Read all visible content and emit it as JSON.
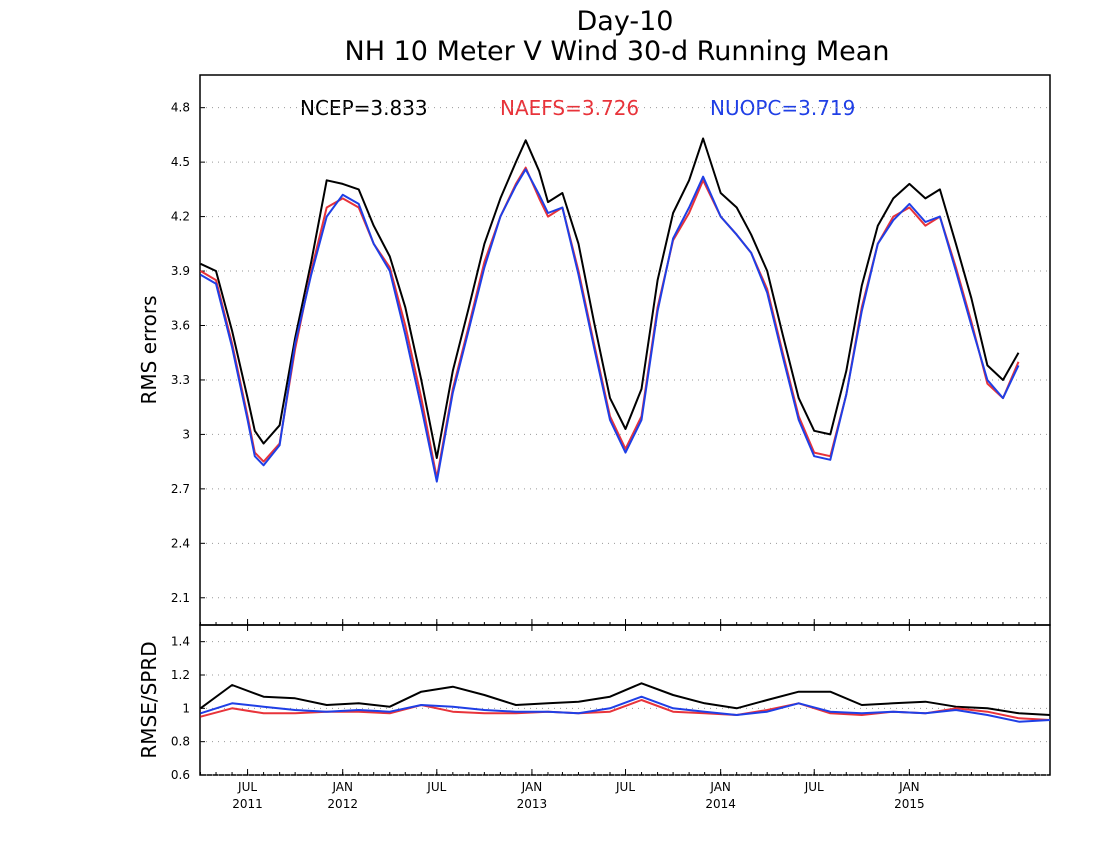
{
  "title": {
    "line1": "Day-10",
    "line2": "NH 10 Meter V Wind 30-d Running Mean"
  },
  "colors": {
    "NCEP": "#000000",
    "NAEFS": "#e8333a",
    "NUOPC": "#1f3fe6"
  },
  "chart_data": [
    {
      "type": "line",
      "ylabel": "RMS errors",
      "ylim": [
        1.95,
        4.98
      ],
      "yticks": [
        "2.1",
        "2.4",
        "2.7",
        "3",
        "3.3",
        "3.6",
        "3.9",
        "4.2",
        "4.5",
        "4.8"
      ],
      "x_range": [
        "2011-03-31",
        "2015-09-30"
      ],
      "grid": true,
      "legend_position": "top",
      "legend": [
        {
          "text": "NCEP=3.833",
          "series": "NCEP"
        },
        {
          "text": "NAEFS=3.726",
          "series": "NAEFS"
        },
        {
          "text": "NUOPC=3.719",
          "series": "NUOPC"
        }
      ],
      "x": [
        "2011-04-01",
        "2011-05-01",
        "2011-06-01",
        "2011-07-01",
        "2011-07-15",
        "2011-08-01",
        "2011-09-01",
        "2011-10-01",
        "2011-11-01",
        "2011-12-01",
        "2012-01-01",
        "2012-02-01",
        "2012-03-01",
        "2012-04-01",
        "2012-05-01",
        "2012-06-01",
        "2012-07-01",
        "2012-08-01",
        "2012-09-01",
        "2012-10-01",
        "2012-11-01",
        "2012-12-01",
        "2012-12-20",
        "2013-01-15",
        "2013-02-01",
        "2013-03-01",
        "2013-04-01",
        "2013-05-01",
        "2013-06-01",
        "2013-07-01",
        "2013-08-01",
        "2013-09-01",
        "2013-10-01",
        "2013-11-01",
        "2013-11-28",
        "2014-01-01",
        "2014-02-01",
        "2014-03-01",
        "2014-04-01",
        "2014-05-01",
        "2014-06-01",
        "2014-07-01",
        "2014-08-01",
        "2014-09-01",
        "2014-10-01",
        "2014-11-01",
        "2014-12-01",
        "2015-01-01",
        "2015-02-01",
        "2015-03-01",
        "2015-04-01",
        "2015-05-01",
        "2015-06-01",
        "2015-07-01",
        "2015-07-31"
      ],
      "series": [
        {
          "name": "NCEP",
          "values": [
            3.94,
            3.9,
            3.57,
            3.2,
            3.02,
            2.95,
            3.05,
            3.53,
            3.95,
            4.4,
            4.38,
            4.35,
            4.15,
            3.98,
            3.7,
            3.3,
            2.87,
            3.35,
            3.7,
            4.05,
            4.3,
            4.5,
            4.62,
            4.45,
            4.28,
            4.33,
            4.05,
            3.62,
            3.2,
            3.03,
            3.25,
            3.85,
            4.22,
            4.4,
            4.63,
            4.33,
            4.25,
            4.1,
            3.9,
            3.55,
            3.2,
            3.02,
            3.0,
            3.35,
            3.82,
            4.15,
            4.3,
            4.38,
            4.3,
            4.35,
            4.05,
            3.75,
            3.38,
            3.3,
            3.45
          ]
        },
        {
          "name": "NAEFS",
          "values": [
            3.9,
            3.85,
            3.5,
            3.1,
            2.9,
            2.85,
            2.95,
            3.47,
            3.9,
            4.25,
            4.3,
            4.25,
            4.05,
            3.92,
            3.6,
            3.2,
            2.76,
            3.25,
            3.6,
            3.95,
            4.2,
            4.38,
            4.47,
            4.3,
            4.2,
            4.25,
            3.9,
            3.5,
            3.1,
            2.92,
            3.1,
            3.7,
            4.07,
            4.22,
            4.4,
            4.2,
            4.1,
            4.0,
            3.8,
            3.45,
            3.1,
            2.9,
            2.88,
            3.22,
            3.7,
            4.05,
            4.2,
            4.25,
            4.15,
            4.2,
            3.92,
            3.62,
            3.28,
            3.2,
            3.4
          ]
        },
        {
          "name": "NUOPC",
          "values": [
            3.88,
            3.83,
            3.48,
            3.08,
            2.88,
            2.83,
            2.94,
            3.5,
            3.88,
            4.2,
            4.32,
            4.27,
            4.05,
            3.9,
            3.55,
            3.15,
            2.74,
            3.23,
            3.58,
            3.92,
            4.2,
            4.37,
            4.46,
            4.32,
            4.22,
            4.25,
            3.88,
            3.48,
            3.08,
            2.9,
            3.08,
            3.68,
            4.08,
            4.25,
            4.42,
            4.2,
            4.1,
            4.0,
            3.78,
            3.43,
            3.08,
            2.88,
            2.86,
            3.22,
            3.68,
            4.05,
            4.18,
            4.27,
            4.17,
            4.2,
            3.9,
            3.6,
            3.3,
            3.2,
            3.38
          ]
        }
      ]
    },
    {
      "type": "line",
      "ylabel": "RMSE/SPRD",
      "ylim": [
        0.6,
        1.5
      ],
      "yticks": [
        "0.6",
        "0.8",
        "1",
        "1.2",
        "1.4"
      ],
      "x_range": [
        "2011-03-31",
        "2015-09-30"
      ],
      "grid": true,
      "xtick_labels": [
        {
          "date": "2011-07-01",
          "month": "JUL",
          "year": "2011"
        },
        {
          "date": "2012-01-01",
          "month": "JAN",
          "year": "2012"
        },
        {
          "date": "2012-07-01",
          "month": "JUL",
          "year": ""
        },
        {
          "date": "2013-01-01",
          "month": "JAN",
          "year": "2013"
        },
        {
          "date": "2013-07-01",
          "month": "JUL",
          "year": ""
        },
        {
          "date": "2014-01-01",
          "month": "JAN",
          "year": "2014"
        },
        {
          "date": "2014-07-01",
          "month": "JUL",
          "year": ""
        },
        {
          "date": "2015-01-01",
          "month": "JAN",
          "year": "2015"
        }
      ],
      "x": [
        "2011-04-01",
        "2011-06-01",
        "2011-08-01",
        "2011-10-01",
        "2011-12-01",
        "2012-02-01",
        "2012-04-01",
        "2012-06-01",
        "2012-08-01",
        "2012-10-01",
        "2012-12-01",
        "2013-02-01",
        "2013-04-01",
        "2013-06-01",
        "2013-08-01",
        "2013-10-01",
        "2013-12-01",
        "2014-02-01",
        "2014-04-01",
        "2014-06-01",
        "2014-08-01",
        "2014-10-01",
        "2014-12-01",
        "2015-02-01",
        "2015-04-01",
        "2015-06-01",
        "2015-08-01",
        "2015-09-30"
      ],
      "series": [
        {
          "name": "NCEP",
          "values": [
            1.0,
            1.14,
            1.07,
            1.06,
            1.02,
            1.03,
            1.01,
            1.1,
            1.13,
            1.08,
            1.02,
            1.03,
            1.04,
            1.07,
            1.15,
            1.08,
            1.03,
            1.0,
            1.05,
            1.1,
            1.1,
            1.02,
            1.03,
            1.04,
            1.01,
            1.0,
            0.97,
            0.96
          ]
        },
        {
          "name": "NAEFS",
          "values": [
            0.95,
            1.0,
            0.97,
            0.97,
            0.98,
            0.98,
            0.97,
            1.02,
            0.98,
            0.97,
            0.97,
            0.98,
            0.97,
            0.98,
            1.05,
            0.98,
            0.97,
            0.96,
            0.99,
            1.03,
            0.97,
            0.96,
            0.98,
            0.97,
            1.0,
            0.98,
            0.94,
            0.93
          ]
        },
        {
          "name": "NUOPC",
          "values": [
            0.97,
            1.03,
            1.01,
            0.99,
            0.98,
            0.99,
            0.98,
            1.02,
            1.01,
            0.99,
            0.98,
            0.98,
            0.97,
            1.0,
            1.07,
            1.0,
            0.98,
            0.96,
            0.98,
            1.03,
            0.98,
            0.97,
            0.98,
            0.97,
            0.99,
            0.96,
            0.92,
            0.93
          ]
        }
      ]
    }
  ]
}
